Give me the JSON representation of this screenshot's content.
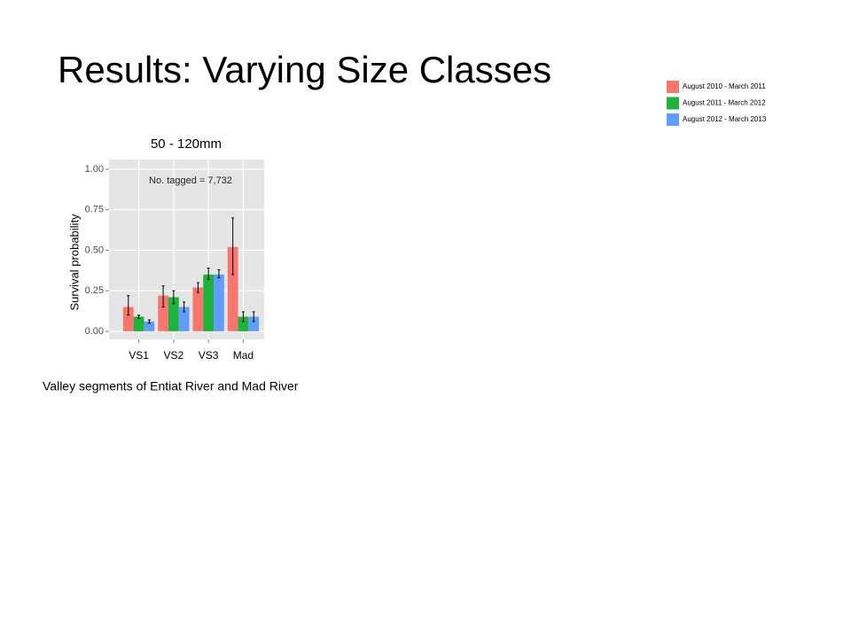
{
  "slide_title": "Results: Varying Size Classes",
  "caption": "Valley segments of Entiat River and Mad River",
  "chart_data": {
    "type": "bar",
    "title": "50 - 120mm",
    "ylabel": "Survival probability",
    "annotation": "No. tagged = 7,732",
    "categories": [
      "VS1",
      "VS2",
      "VS3",
      "Mad"
    ],
    "series": [
      {
        "name": "August 2010 - March 2011",
        "color": "#f8766d",
        "values": [
          0.15,
          0.22,
          0.27,
          0.52
        ],
        "lower": [
          0.1,
          0.15,
          0.24,
          0.35
        ],
        "upper": [
          0.22,
          0.28,
          0.3,
          0.7
        ]
      },
      {
        "name": "August 2011 - March 2012",
        "color": "#1db33c",
        "values": [
          0.09,
          0.21,
          0.35,
          0.09
        ],
        "lower": [
          0.08,
          0.17,
          0.32,
          0.06
        ],
        "upper": [
          0.1,
          0.25,
          0.39,
          0.12
        ]
      },
      {
        "name": "August 2012 - March 2013",
        "color": "#619cff",
        "values": [
          0.06,
          0.15,
          0.35,
          0.09
        ],
        "lower": [
          0.05,
          0.12,
          0.33,
          0.06
        ],
        "upper": [
          0.07,
          0.18,
          0.38,
          0.12
        ]
      }
    ],
    "ylim": [
      -0.05,
      1.06
    ],
    "yticks": [
      {
        "value": 0,
        "label": "0.00"
      },
      {
        "value": 0.25,
        "label": "0.25"
      },
      {
        "value": 0.5,
        "label": "0.50"
      },
      {
        "value": 0.75,
        "label": "0.75"
      },
      {
        "value": 1,
        "label": "1.00"
      }
    ],
    "grid": true
  }
}
